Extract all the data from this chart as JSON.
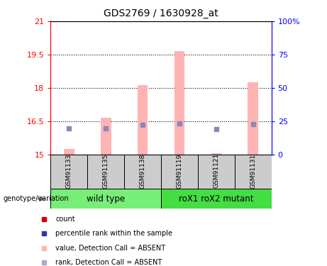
{
  "title": "GDS2769 / 1630928_at",
  "samples": [
    "GSM91133",
    "GSM91135",
    "GSM91138",
    "GSM91119",
    "GSM91121",
    "GSM91131"
  ],
  "bar_values": [
    15.25,
    16.65,
    18.12,
    19.65,
    15.05,
    18.25
  ],
  "rank_values": [
    16.18,
    16.18,
    16.32,
    16.38,
    16.12,
    16.35
  ],
  "bar_color": "#ffb3b3",
  "rank_color": "#8888bb",
  "ymin": 15,
  "ymax": 21,
  "yticks": [
    15,
    16.5,
    18,
    19.5,
    21
  ],
  "ytick_labels": [
    "15",
    "16.5",
    "18",
    "19.5",
    "21"
  ],
  "y2ticks": [
    0,
    25,
    50,
    75,
    100
  ],
  "y2tick_labels": [
    "0",
    "25",
    "50",
    "75",
    "100%"
  ],
  "wt_color": "#77ee77",
  "mut_color": "#44dd44",
  "gray_color": "#cccccc",
  "genotype_label": "genotype/variation",
  "legend_colors": [
    "#cc0000",
    "#3333aa",
    "#ffb3b3",
    "#aaaacc"
  ],
  "legend_labels": [
    "count",
    "percentile rank within the sample",
    "value, Detection Call = ABSENT",
    "rank, Detection Call = ABSENT"
  ]
}
